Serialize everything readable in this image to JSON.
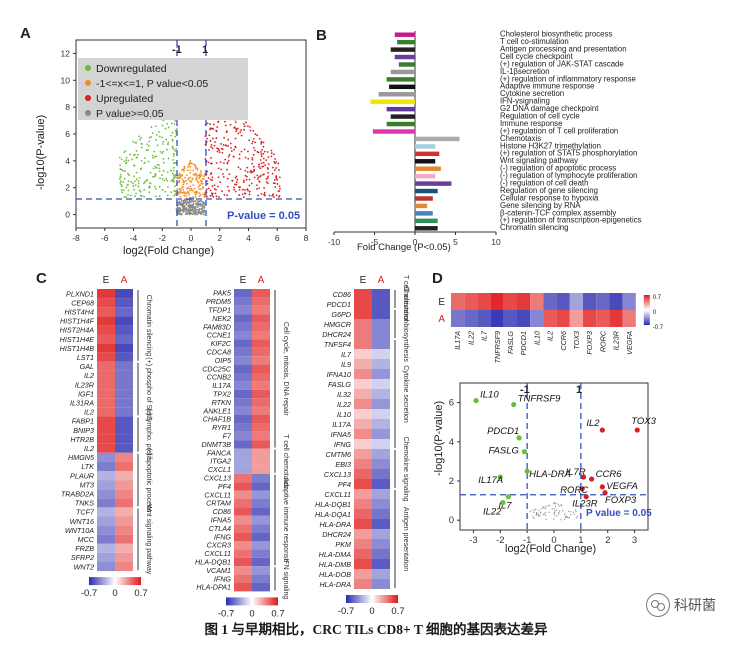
{
  "panels": {
    "A": {
      "label": "A",
      "xlabel": "log2(Fold Change)",
      "ylabel": "-log10(P-value)",
      "threshold_label": "P-value = 0.05",
      "vlines": [
        "-1",
        "1"
      ],
      "legend": [
        "Downregulated",
        "-1<=x<=1, P value<0.05",
        "Upregulated",
        "P value>=0.05"
      ],
      "legend_colors": [
        "#6abf3a",
        "#f0902a",
        "#d92020",
        "#888888"
      ],
      "xticks": [
        "-8",
        "-6",
        "-4",
        "-2",
        "0",
        "2",
        "4",
        "6",
        "8"
      ],
      "yticks": [
        "0",
        "2",
        "4",
        "6",
        "8",
        "10",
        "12"
      ]
    },
    "B": {
      "label": "B",
      "xlabel": "Fold Change (P<0.05)",
      "xticks": [
        "-10",
        "-5",
        "0",
        "5",
        "10"
      ]
    },
    "C": {
      "label": "C",
      "col_E": "E",
      "col_A": "A",
      "scale": [
        "-0.7",
        "0",
        "0.7"
      ],
      "col1_genes": [
        "PLXND1",
        "CEP68",
        "HIST4H4",
        "HIST1H4F",
        "HIST2H4A",
        "HIST1H4E",
        "HIST1H4B",
        "LST1",
        "GAL",
        "IL2",
        "IL23R",
        "IGF1",
        "IL31RA",
        "IL2",
        "FABP1",
        "BNIP3",
        "HTR2B",
        "IL2",
        "HMGN5",
        "LTK",
        "PLAUR",
        "MT3",
        "TRABD2A",
        "TNKS",
        "TCF7",
        "WNT16",
        "WNT10A",
        "MCC",
        "FRZB",
        "SFRP2",
        "WNT2"
      ],
      "col1_groups": [
        "Chromatin silencing",
        "(+) phospho of Stat5",
        "(-) lympho. prolif.",
        "(-) apoptotic process",
        "Wnt signaling pathway"
      ],
      "col2_genes": [
        "PAK5",
        "PRDM5",
        "TFDP1",
        "NEK2",
        "FAM83D",
        "CCNE1",
        "KIF2C",
        "CDCA8",
        "OIP5",
        "CDC25C",
        "CCNB2",
        "IL17A",
        "TPX2",
        "RTKN",
        "ANKLE1",
        "CHAF1B",
        "RYR1",
        "F7",
        "DNMT3B",
        "FANCA",
        "ITGA2",
        "CXCL1",
        "CXCL13",
        "PF4",
        "CXCL11",
        "CRTAM",
        "CD86",
        "IFNA5",
        "CTLA4",
        "IFNG",
        "CXCR3",
        "CXCL11",
        "HLA-DQB1",
        "VCAM1",
        "IFNG",
        "HLA-DPA1"
      ],
      "col2_groups": [
        "Cell cycle, mitosis, DNA repair",
        "T cell chemotaxis",
        "Adaptive immune response",
        "IFN signaling"
      ],
      "col3_genes": [
        "CD86",
        "PDCD1",
        "G6PD",
        "HMGCR",
        "DHCR24",
        "TNFSF4",
        "IL7",
        "IL9",
        "IFNA10",
        "FASLG",
        "IL32",
        "IL22",
        "IL10",
        "IL17A",
        "IFNA5",
        "IFNG",
        "CMTM6",
        "EBI3",
        "CXCL13",
        "PF4",
        "CXCL11",
        "HLA-DQB1",
        "HLA-DQA1",
        "HLA-DRA",
        "DHCR24",
        "PKM",
        "HLA-DMA",
        "HLA-DMB",
        "HLA-DOB",
        "HLA-DRA"
      ],
      "col3_groups": [
        "T cell activation",
        "Cholesterol biosynthesis",
        "Cytokine secretion",
        "Chemokine signaling",
        "Antigen presentation"
      ]
    },
    "D": {
      "label": "D",
      "row_E": "E",
      "row_A": "A",
      "genes": [
        "IL17A",
        "IL22",
        "IL7",
        "TNFRSF9",
        "FASLG",
        "PDCD1",
        "IL10",
        "IL2",
        "CCR6",
        "TOX3",
        "FOXP3",
        "RORC",
        "IL23R",
        "VEGFA"
      ],
      "scale": [
        "0.7",
        "0",
        "-0.7"
      ],
      "xlabel": "log2(Fold Change)",
      "ylabel": "-log10(P-value)",
      "threshold_label": "P value = 0.05",
      "vlines": [
        "-1",
        "1"
      ],
      "xticks": [
        "-3",
        "-2",
        "-1",
        "0",
        "1",
        "2",
        "3"
      ],
      "yticks": [
        "0",
        "2",
        "4",
        "6"
      ]
    }
  },
  "chart_data": [
    {
      "type": "bar",
      "panel": "B",
      "xlabel": "Fold Change (P<0.05)",
      "xlim": [
        -10,
        10
      ],
      "categories": [
        "Cholesterol biosynthetic process",
        "T cell co-stimulation",
        "Antigen processing and presentation",
        "Cell cycle checkpoint",
        "(+) regulation of JAK-STAT cascade",
        "IL-1βsecretion",
        "(+) regulation of inflammatory response",
        "Adaptive immune response",
        "Cytokine secretion",
        "IFN-γsignaling",
        "G2 DNA damage checkpoint",
        "Regulation of cell cycle",
        "Immune response",
        "(+) regulation of T cell proliferation",
        "Chemotaxis",
        "Histone H3K27 trimethylation",
        "(+) regulation of STAT5 phosphorylation",
        "Wnt signaling pathway",
        "(-) regulation of apoptotic process",
        "(-) regulation of lymphocyte proliferation",
        "(-) regulation of cell death",
        "Regulation of gene silencing",
        "Cellular response to hypoxia",
        "Gene silencing by RNA",
        "β-catenin-TCF complex assembly",
        "(+) regulation of transcription-epigenetics",
        "Chromatin silencing"
      ],
      "values": [
        -2.5,
        -2.2,
        -3.0,
        -2.5,
        -2.0,
        -3.0,
        -3.5,
        -3.2,
        -4.5,
        -5.5,
        -3.5,
        -3.0,
        -3.5,
        -5.2,
        5.5,
        2.5,
        3.0,
        2.5,
        3.2,
        2.5,
        4.5,
        2.8,
        2.2,
        1.5,
        2.2,
        2.8,
        2.8
      ],
      "colors": [
        "#c51b8a",
        "#3a7d2c",
        "#222222",
        "#6a3d9a",
        "#3a7d2c",
        "#999999",
        "#3a7d2c",
        "#111111",
        "#999999",
        "#f2e600",
        "#5e3c99",
        "#222222",
        "#3a7d2c",
        "#e033b0",
        "#aaaaaa",
        "#a6cee3",
        "#cc3333",
        "#111111",
        "#e08a2c",
        "#f4a9c6",
        "#6a3d9a",
        "#1a5276",
        "#c03030",
        "#e08a2c",
        "#4d7fc0",
        "#2f8f5a",
        "#222222"
      ]
    },
    {
      "type": "heatmap",
      "panel": "D",
      "genes": [
        "IL17A",
        "IL22",
        "IL7",
        "TNFRSF9",
        "FASLG",
        "PDCD1",
        "IL10",
        "IL2",
        "CCR6",
        "TOX3",
        "FOXP3",
        "RORC",
        "IL23R",
        "VEGFA"
      ],
      "rows": [
        "E",
        "A"
      ],
      "values_E": [
        0.45,
        0.5,
        0.55,
        0.65,
        0.55,
        0.6,
        0.4,
        -0.5,
        -0.55,
        -0.3,
        -0.55,
        -0.5,
        -0.6,
        -0.4
      ],
      "values_A": [
        -0.45,
        -0.5,
        -0.55,
        -0.65,
        -0.55,
        -0.6,
        -0.4,
        0.5,
        0.55,
        0.3,
        0.55,
        0.5,
        0.6,
        0.4
      ],
      "range": [
        -0.7,
        0.7
      ]
    },
    {
      "type": "scatter",
      "panel": "D",
      "xlabel": "log2(Fold Change)",
      "ylabel": "-log10(P-value)",
      "xlim": [
        -3.5,
        3.5
      ],
      "ylim": [
        -0.5,
        7
      ],
      "points": [
        {
          "label": "IL10",
          "x": -2.9,
          "y": 6.1,
          "color": "#6abf3a"
        },
        {
          "label": "TNFRSF9",
          "x": -1.5,
          "y": 5.9,
          "color": "#6abf3a"
        },
        {
          "label": "FASLG",
          "x": -1.1,
          "y": 3.5,
          "color": "#6abf3a"
        },
        {
          "label": "PDCD1",
          "x": -1.3,
          "y": 4.2,
          "color": "#6abf3a"
        },
        {
          "label": "IL17A",
          "x": -2.0,
          "y": 2.2,
          "color": "#6abf3a"
        },
        {
          "label": "HLA-DRA",
          "x": -1.0,
          "y": 2.5,
          "color": "#6abf3a"
        },
        {
          "label": "IL7",
          "x": -1.7,
          "y": 1.2,
          "color": "#6abf3a"
        },
        {
          "label": "IL22",
          "x": -1.9,
          "y": 0.9,
          "color": "#6abf3a"
        },
        {
          "label": "IL2",
          "x": 1.8,
          "y": 4.6,
          "color": "#d92020"
        },
        {
          "label": "TOX3",
          "x": 3.1,
          "y": 4.6,
          "color": "#d92020"
        },
        {
          "label": "IL7R",
          "x": 1.1,
          "y": 2.2,
          "color": "#d92020"
        },
        {
          "label": "CCR6",
          "x": 1.4,
          "y": 2.1,
          "color": "#d92020"
        },
        {
          "label": "VEGFA",
          "x": 1.8,
          "y": 1.7,
          "color": "#d92020"
        },
        {
          "label": "RORC",
          "x": 1.05,
          "y": 1.6,
          "color": "#d92020"
        },
        {
          "label": "FOXP3",
          "x": 1.9,
          "y": 1.4,
          "color": "#d92020"
        },
        {
          "label": "IL23R",
          "x": 1.2,
          "y": 1.2,
          "color": "#d92020"
        }
      ]
    }
  ],
  "caption": "图 1  与早期相比，CRC TILs CD8+ T 细胞的基因表达差异",
  "watermark": "科研菌"
}
